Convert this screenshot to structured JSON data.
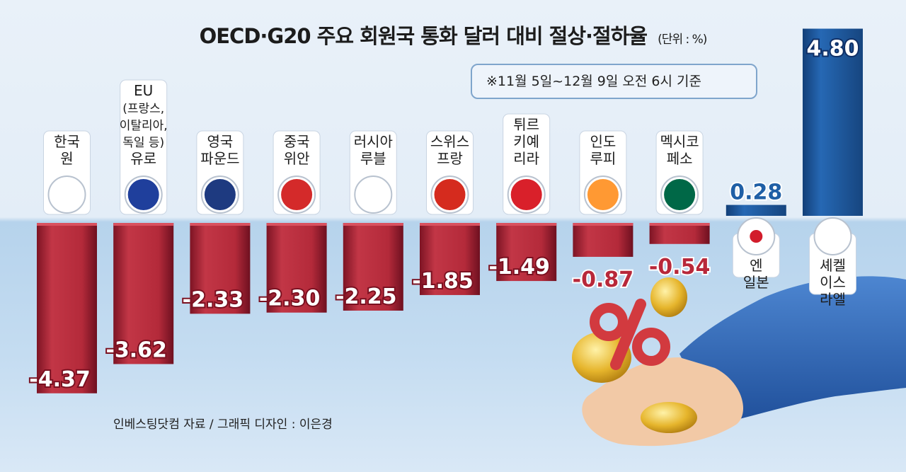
{
  "chart_data": {
    "type": "bar",
    "title": "OECD·G20 주요 회원국 통화 달러 대비 절상·절하율",
    "unit": "(단위 : %)",
    "note": "※11월 5일~12월 9일 오전 6시 기준",
    "source": "인베스팅닷컴 자료 / 그래픽 디자인 : 이은경",
    "ylim": [
      -4.37,
      4.8
    ],
    "categories": [
      {
        "country": "한국",
        "currency": "원"
      },
      {
        "country": "EU (프랑스, 이탈리아, 독일 등)",
        "currency": "유로"
      },
      {
        "country": "영국",
        "currency": "파운드"
      },
      {
        "country": "중국",
        "currency": "위안"
      },
      {
        "country": "러시아",
        "currency": "루블"
      },
      {
        "country": "스위스",
        "currency": "프랑"
      },
      {
        "country": "튀르키예",
        "currency": "리라"
      },
      {
        "country": "인도",
        "currency": "루피"
      },
      {
        "country": "멕시코",
        "currency": "페소"
      },
      {
        "country": "일본",
        "currency": "엔"
      },
      {
        "country": "이스라엘",
        "currency": "셰켈"
      }
    ],
    "label_lines": [
      [
        "한국",
        "원"
      ],
      [
        "EU",
        "(프랑스,",
        "이탈리아,",
        "독일 등)",
        "유로"
      ],
      [
        "영국",
        "파운드"
      ],
      [
        "중국",
        "위안"
      ],
      [
        "러시아",
        "루블"
      ],
      [
        "스위스",
        "프랑"
      ],
      [
        "튀르",
        "키예",
        "리라"
      ],
      [
        "인도",
        "루피"
      ],
      [
        "멕시코",
        "페소"
      ],
      [
        "엔",
        "일본"
      ],
      [
        "셰켈",
        "이스",
        "라엘"
      ]
    ],
    "values": [
      -4.37,
      -3.62,
      -2.33,
      -2.3,
      -2.25,
      -1.85,
      -1.49,
      -0.87,
      -0.54,
      0.28,
      4.8
    ],
    "value_labels": [
      "-4.37",
      "-3.62",
      "-2.33",
      "-2.30",
      "-2.25",
      "-1.85",
      "-1.49",
      "-0.87",
      "-0.54",
      "0.28",
      "4.80"
    ],
    "flag_icons": [
      "korea-flag-icon",
      "eu-flag-icon",
      "uk-flag-icon",
      "china-flag-icon",
      "russia-flag-icon",
      "switzerland-flag-icon",
      "turkey-flag-icon",
      "india-flag-icon",
      "mexico-flag-icon",
      "japan-flag-icon",
      "israel-flag-icon"
    ],
    "colors": {
      "negative": "#b8283a",
      "positive": "#1f5fa6",
      "negative_label": "#b8283a",
      "positive_label": "#1f5fa6"
    }
  }
}
